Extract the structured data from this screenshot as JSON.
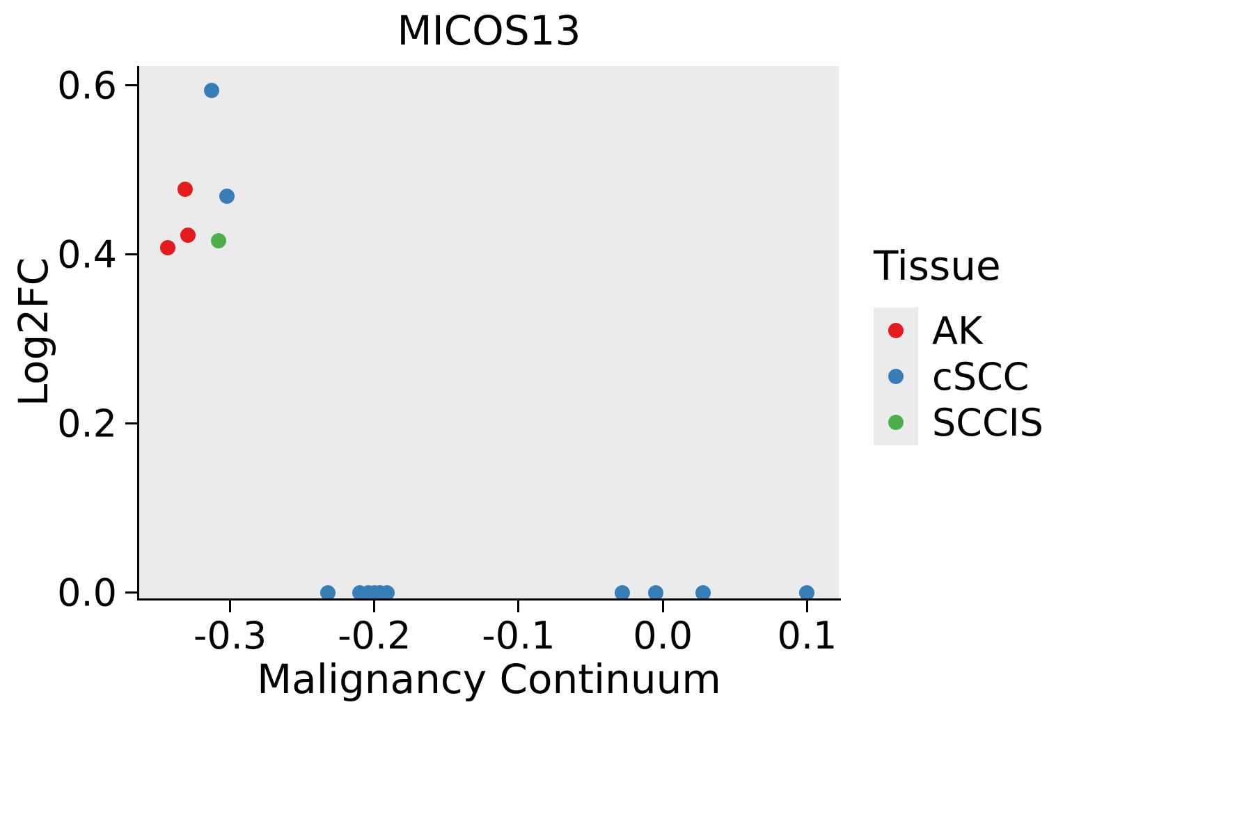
{
  "chart_data": {
    "type": "scatter",
    "title": "MICOS13",
    "xlabel": "Malignancy Continuum",
    "ylabel": "Log2FC",
    "xlim": [
      -0.363,
      0.122
    ],
    "ylim": [
      -0.007,
      0.623
    ],
    "x_ticks": [
      -0.3,
      -0.2,
      -0.1,
      0.0,
      0.1
    ],
    "x_tick_labels": [
      "-0.3",
      "-0.2",
      "-0.1",
      "0.0",
      "0.1"
    ],
    "y_ticks": [
      0.0,
      0.2,
      0.4,
      0.6
    ],
    "y_tick_labels": [
      "0.0",
      "0.2",
      "0.4",
      "0.6"
    ],
    "grid": false,
    "panel_background": "#EBEBEB",
    "legend_title": "Tissue",
    "legend_position": "right",
    "legend_key_background": "#EBEBEB",
    "series": [
      {
        "name": "AK",
        "color": "#E41A1C",
        "points": [
          [
            -0.343,
            0.408
          ],
          [
            -0.331,
            0.477
          ],
          [
            -0.329,
            0.423
          ]
        ]
      },
      {
        "name": "cSCC",
        "color": "#377EB8",
        "points": [
          [
            -0.313,
            0.594
          ],
          [
            -0.302,
            0.469
          ],
          [
            -0.232,
            0.0
          ],
          [
            -0.21,
            0.0
          ],
          [
            -0.204,
            0.0
          ],
          [
            -0.2,
            0.0
          ],
          [
            -0.196,
            0.0
          ],
          [
            -0.191,
            0.0
          ],
          [
            -0.028,
            0.0
          ],
          [
            -0.005,
            0.0
          ],
          [
            0.028,
            0.0
          ],
          [
            0.1,
            0.0
          ]
        ]
      },
      {
        "name": "SCCIS",
        "color": "#4DAF4A",
        "points": [
          [
            -0.308,
            0.416
          ]
        ]
      }
    ]
  }
}
